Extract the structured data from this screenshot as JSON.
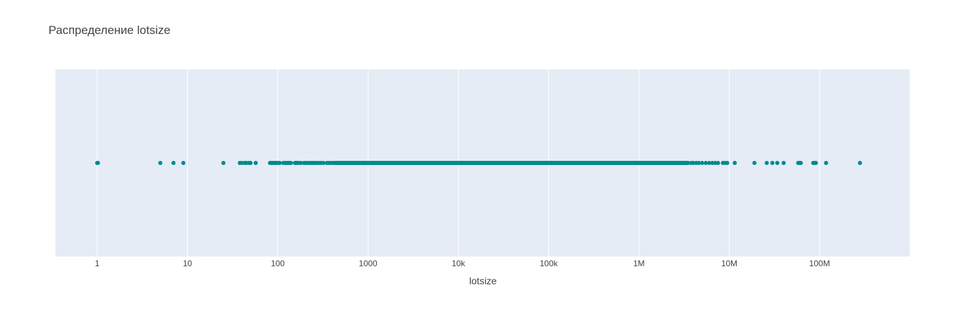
{
  "chart_data": {
    "type": "scatter",
    "title": "Распределение lotsize",
    "xlabel": "lotsize",
    "ylabel": "",
    "x_scale": "log",
    "xlim": [
      0.345,
      1000000000
    ],
    "x_ticks": [
      {
        "value": 1,
        "label": "1"
      },
      {
        "value": 10,
        "label": "10"
      },
      {
        "value": 100,
        "label": "100"
      },
      {
        "value": 1000,
        "label": "1000"
      },
      {
        "value": 10000,
        "label": "10k"
      },
      {
        "value": 100000,
        "label": "100k"
      },
      {
        "value": 1000000,
        "label": "1M"
      },
      {
        "value": 10000000,
        "label": "10M"
      },
      {
        "value": 100000000,
        "label": "100M"
      }
    ],
    "grid": true,
    "marker_color": "#008b8b",
    "plot_background": "#e5ecf6",
    "x_values": [
      1,
      1.02,
      5,
      7,
      9,
      25,
      38,
      40,
      43,
      45,
      48,
      50,
      57,
      82,
      85,
      88,
      92,
      95,
      100,
      105,
      115,
      120,
      125,
      130,
      135,
      140,
      155,
      160,
      165,
      170,
      180,
      195,
      200,
      210,
      220,
      230,
      240,
      250,
      260,
      270,
      285,
      300,
      320,
      350,
      370,
      390,
      410,
      430,
      3500000,
      3800000,
      4000000,
      4300000,
      4600000,
      5000000,
      5500000,
      6000000,
      6500000,
      7000000,
      7500000,
      8500000,
      9000000,
      9500000,
      11500000,
      19000000,
      26000000,
      30000000,
      34000000,
      40000000,
      58000000,
      60000000,
      62000000,
      85000000,
      88000000,
      91000000,
      118000000,
      280000000
    ],
    "dense_range": [
      440,
      3400000
    ]
  }
}
